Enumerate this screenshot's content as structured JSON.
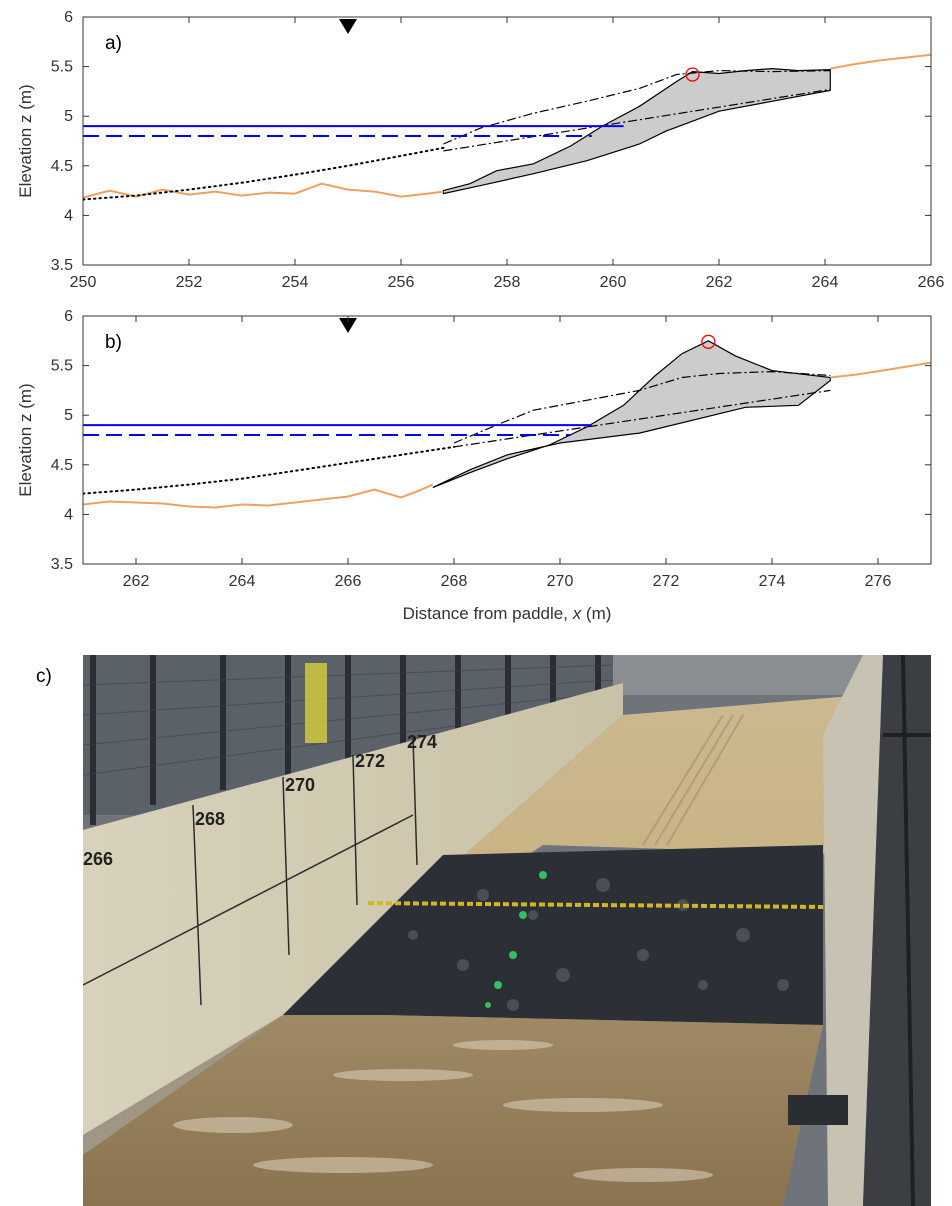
{
  "figure": {
    "photo_label": "c)",
    "photo_description": "photo-of-flume-with-gravel-barrier",
    "photo_markings": [
      "266",
      "268",
      "270",
      "272",
      "274"
    ]
  },
  "colors": {
    "bed_profile": "#f0a060",
    "still_water": "#0000ff",
    "barrier_fill": "#cccccc",
    "crest_marker": "#ff0000",
    "initial_profile": "#000000"
  },
  "chart_data": [
    {
      "type": "line",
      "panel_label": "a)",
      "xlabel": "",
      "ylabel": "Elevation z (m)",
      "xlim": [
        250,
        266
      ],
      "ylim": [
        3.5,
        6
      ],
      "x_ticks": [
        "250",
        "252",
        "254",
        "256",
        "258",
        "260",
        "262",
        "264",
        "266"
      ],
      "y_ticks": [
        "3.5",
        "4",
        "4.5",
        "5",
        "5.5",
        "6"
      ],
      "grid": false,
      "gauge_marker_x": 255,
      "series": [
        {
          "style": "solid-orange",
          "x": [
            250,
            250.5,
            251,
            251.5,
            252,
            252.5,
            253,
            253.5,
            254,
            254.5,
            255,
            255.5,
            256,
            256.5,
            256.8
          ],
          "y": [
            4.18,
            4.25,
            4.19,
            4.26,
            4.21,
            4.24,
            4.2,
            4.23,
            4.22,
            4.32,
            4.26,
            4.24,
            4.19,
            4.22,
            4.24
          ]
        },
        {
          "style": "solid-orange",
          "x": [
            264.1,
            264.5,
            265,
            265.5,
            266
          ],
          "y": [
            5.48,
            5.52,
            5.56,
            5.59,
            5.62
          ]
        },
        {
          "style": "dotted-black",
          "x": [
            250,
            251,
            252,
            253,
            254,
            255,
            256,
            256.8
          ],
          "y": [
            4.16,
            4.2,
            4.26,
            4.33,
            4.41,
            4.5,
            4.6,
            4.68
          ]
        },
        {
          "style": "dashdot-black",
          "x": [
            256.8,
            257.5,
            258.5,
            259.5,
            260.5,
            261.2,
            262,
            263,
            264.1
          ],
          "y": [
            4.72,
            4.88,
            5.03,
            5.15,
            5.28,
            5.42,
            5.46,
            5.45,
            5.46
          ]
        },
        {
          "style": "dashdot-black",
          "x": [
            256.8,
            264.1
          ],
          "y": [
            4.65,
            5.27
          ]
        },
        {
          "style": "barrier-polygon",
          "x": [
            256.8,
            257.3,
            257.8,
            258.5,
            259.2,
            259.8,
            260.5,
            261.2,
            261.5,
            262,
            262.5,
            263,
            263.5,
            264.1,
            264.1,
            263,
            262,
            261.5,
            261,
            260.5,
            259.5,
            258.5,
            257.5,
            256.8
          ],
          "y": [
            4.25,
            4.32,
            4.45,
            4.52,
            4.7,
            4.9,
            5.1,
            5.35,
            5.45,
            5.43,
            5.46,
            5.48,
            5.46,
            5.47,
            5.26,
            5.15,
            5.05,
            4.95,
            4.85,
            4.72,
            4.55,
            4.42,
            4.3,
            4.22
          ]
        },
        {
          "style": "solid-blue",
          "x": [
            250,
            260.2
          ],
          "y": [
            4.9,
            4.9
          ]
        },
        {
          "style": "dashed-blue",
          "x": [
            250,
            259.6
          ],
          "y": [
            4.8,
            4.8
          ]
        }
      ],
      "crest_marker": {
        "x": 261.5,
        "y": 5.42
      }
    },
    {
      "type": "line",
      "panel_label": "b)",
      "xlabel": "Distance from paddle, x (m)",
      "ylabel": "Elevation z (m)",
      "xlim": [
        261,
        277
      ],
      "ylim": [
        3.5,
        6
      ],
      "x_ticks": [
        "262",
        "264",
        "266",
        "268",
        "270",
        "272",
        "274",
        "276"
      ],
      "y_ticks": [
        "3.5",
        "4",
        "4.5",
        "5",
        "5.5",
        "6"
      ],
      "grid": false,
      "gauge_marker_x": 266,
      "series": [
        {
          "style": "solid-orange",
          "x": [
            261,
            261.5,
            262,
            262.5,
            263,
            263.5,
            264,
            264.5,
            265,
            265.5,
            266,
            266.5,
            267,
            267.3,
            267.6
          ],
          "y": [
            4.1,
            4.13,
            4.12,
            4.11,
            4.08,
            4.07,
            4.1,
            4.09,
            4.12,
            4.15,
            4.18,
            4.25,
            4.17,
            4.23,
            4.3
          ]
        },
        {
          "style": "solid-orange",
          "x": [
            275.1,
            275.6,
            276.2,
            277
          ],
          "y": [
            5.38,
            5.41,
            5.46,
            5.53
          ]
        },
        {
          "style": "dotted-black",
          "x": [
            261,
            262,
            263,
            264,
            265,
            266,
            267,
            268
          ],
          "y": [
            4.21,
            4.25,
            4.3,
            4.36,
            4.44,
            4.52,
            4.6,
            4.68
          ]
        },
        {
          "style": "dashdot-black",
          "x": [
            268,
            268.8,
            269.5,
            270.5,
            271.5,
            272.3,
            273,
            274,
            275.1
          ],
          "y": [
            4.72,
            4.9,
            5.05,
            5.15,
            5.25,
            5.38,
            5.42,
            5.44,
            5.4
          ]
        },
        {
          "style": "dashdot-black",
          "x": [
            268,
            275.1
          ],
          "y": [
            4.68,
            5.25
          ]
        },
        {
          "style": "barrier-polygon",
          "x": [
            267.6,
            268.3,
            269,
            269.8,
            270.5,
            271.2,
            271.8,
            272.3,
            272.8,
            273.3,
            274,
            275.1,
            275.1,
            274.5,
            273.5,
            271.5,
            270,
            269,
            268.3,
            267.6
          ],
          "y": [
            4.27,
            4.42,
            4.56,
            4.7,
            4.88,
            5.1,
            5.4,
            5.62,
            5.75,
            5.6,
            5.45,
            5.38,
            5.35,
            5.1,
            5.08,
            4.82,
            4.72,
            4.6,
            4.45,
            4.27
          ]
        },
        {
          "style": "solid-blue",
          "x": [
            261,
            270.6
          ],
          "y": [
            4.9,
            4.9
          ]
        },
        {
          "style": "dashed-blue",
          "x": [
            261,
            270.2
          ],
          "y": [
            4.8,
            4.8
          ]
        }
      ],
      "crest_marker": {
        "x": 272.8,
        "y": 5.74
      }
    }
  ]
}
